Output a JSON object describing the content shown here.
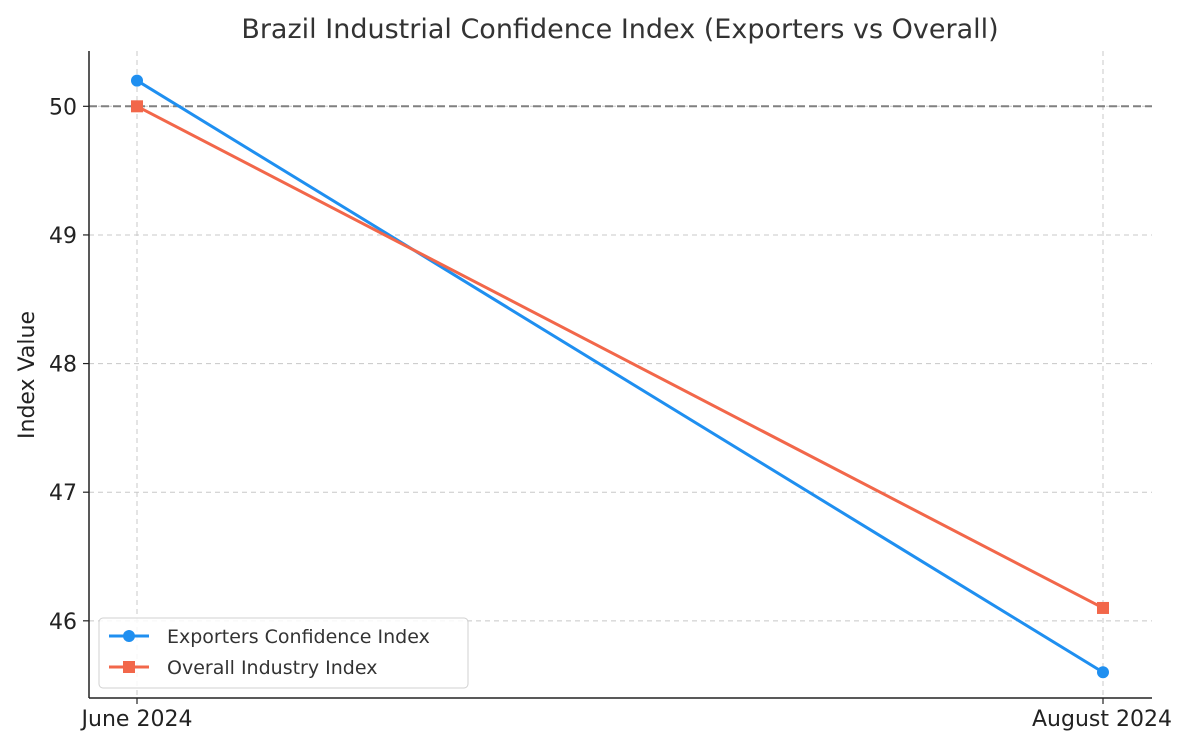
{
  "chart_data": {
    "type": "line",
    "title": "Brazil Industrial Confidence Index (Exporters vs Overall)",
    "xlabel": "",
    "ylabel": "Index Value",
    "categories": [
      "June 2024",
      "August 2024"
    ],
    "series": [
      {
        "name": "Exporters Confidence Index",
        "values": [
          50.2,
          45.6
        ],
        "color": "#1f8ff0",
        "marker": "circle"
      },
      {
        "name": "Overall Industry Index",
        "values": [
          50.0,
          46.1
        ],
        "color": "#f2674a",
        "marker": "square"
      }
    ],
    "ylim": [
      45.4,
      50.43
    ],
    "yticks": [
      46,
      47,
      48,
      49,
      50
    ],
    "reference_line": {
      "y": 50,
      "style": "dashed",
      "color": "#808080"
    },
    "grid": true,
    "legend_position": "lower-left"
  }
}
